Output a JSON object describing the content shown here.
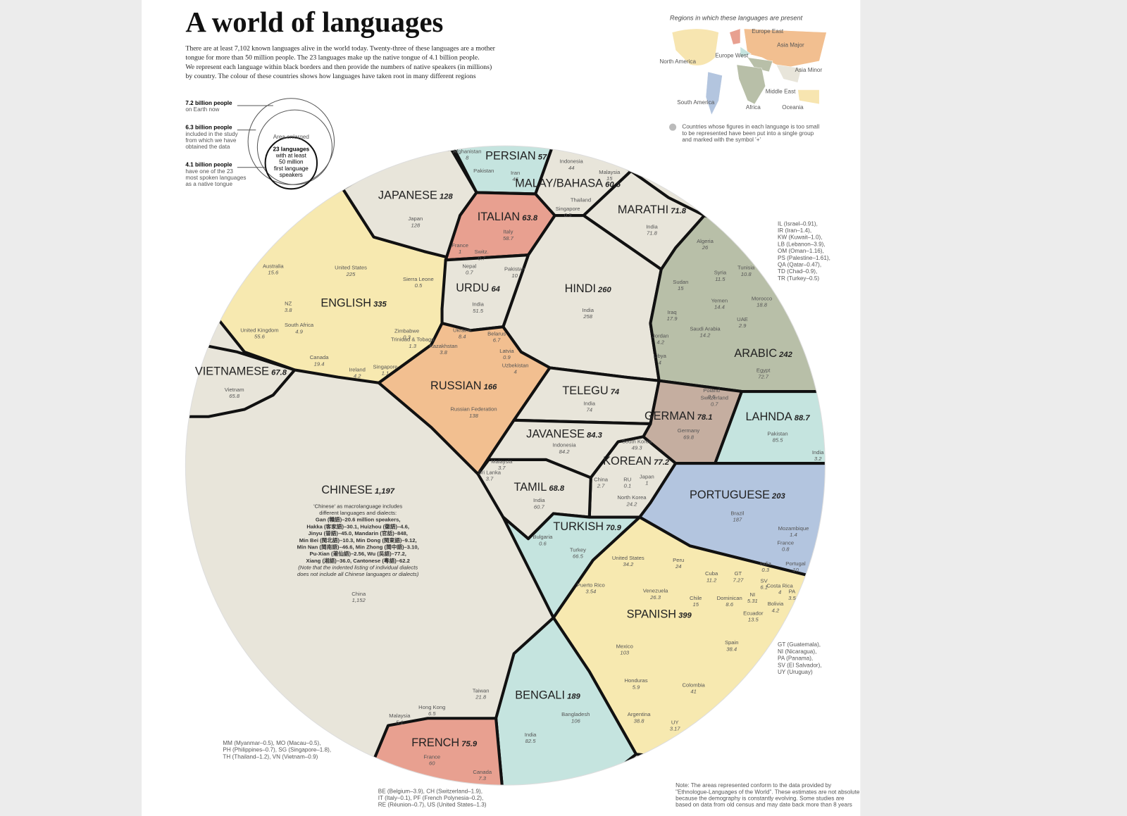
{
  "header": {
    "title": "A world of languages",
    "intro": [
      "There are at least 7,102 known languages alive in the world today. Twenty-three of these languages are a mother",
      "tongue for more than 50 million people. The 23 languages make up the native tongue of 4.1 billion people.",
      "We represent each language within black borders and then provide the numbers of native speakers (in millions)",
      "by country. The colour of these countries shows how languages have taken root in many different regions"
    ]
  },
  "key": {
    "items": [
      {
        "figure": "7.2 billion people",
        "text": [
          "on Earth now"
        ]
      },
      {
        "figure": "6.3 billion people",
        "text": [
          "included in the study",
          "from which we have",
          "obtained the data"
        ]
      },
      {
        "figure": "4.1 billion people",
        "text": [
          "have one of the 23",
          "most spoken languages",
          "as a native tongue"
        ]
      }
    ],
    "enlarged": "Area enlarged",
    "circle_text": [
      "23 languages",
      "with at least",
      "50 million",
      "first language",
      "speakers"
    ]
  },
  "map": {
    "title": "Regions in which these languages are present",
    "regions": [
      "Europe East",
      "Asia Major",
      "North America",
      "Europe West",
      "Asia Minor",
      "Middle East",
      "South America",
      "Africa",
      "Oceania"
    ],
    "note": [
      "Countries whose figures in each language is too small",
      "to be represented have been put into a single group",
      "and marked with the symbol '+'"
    ]
  },
  "languages": [
    {
      "name": "PERSIAN",
      "total": 57,
      "countries": [
        {
          "name": "Afghanistan",
          "value": 8
        },
        {
          "name": "Pakistan"
        },
        {
          "name": "Iran",
          "value": 46
        }
      ]
    },
    {
      "name": "MALAY/BAHASA",
      "total": 60.5,
      "countries": [
        {
          "name": "Indonesia",
          "value": 44
        },
        {
          "name": "Malaysia",
          "value": 15
        },
        {
          "name": "Thailand"
        },
        {
          "name": "Singapore",
          "value": 0.5
        }
      ]
    },
    {
      "name": "JAPANESE",
      "total": 128,
      "countries": [
        {
          "name": "Japan",
          "value": 128
        }
      ]
    },
    {
      "name": "ITALIAN",
      "total": 63.8,
      "countries": [
        {
          "name": "Italy",
          "value": 58.7
        },
        {
          "name": "France",
          "value": 1
        },
        {
          "name": "Switz.",
          "value": 0.7
        }
      ]
    },
    {
      "name": "MARATHI",
      "total": 71.8,
      "countries": [
        {
          "name": "India",
          "value": 71.8
        }
      ]
    },
    {
      "name": "URDU",
      "total": 64,
      "countries": [
        {
          "name": "Nepal",
          "value": 0.7
        },
        {
          "name": "Pakistan",
          "value": 10
        },
        {
          "name": "India",
          "value": 51.5
        }
      ]
    },
    {
      "name": "HINDI",
      "total": 260,
      "countries": [
        {
          "name": "India",
          "value": 258
        }
      ]
    },
    {
      "name": "ENGLISH",
      "total": 335,
      "countries": [
        {
          "name": "United States",
          "value": 225
        },
        {
          "name": "Australia",
          "value": 15.6
        },
        {
          "name": "NZ",
          "value": 3.8
        },
        {
          "name": "South Africa",
          "value": 4.9
        },
        {
          "name": "United Kingdom",
          "value": 55.6
        },
        {
          "name": "Canada",
          "value": 19.4
        },
        {
          "name": "Ireland",
          "value": 4.2
        },
        {
          "name": "Singapore",
          "value": 1.1
        },
        {
          "name": "Sierra Leone",
          "value": 0.5
        },
        {
          "name": "Zimbabwe",
          "value": 0.3
        },
        {
          "name": "Trinidad & Tobago",
          "value": 1.3
        }
      ]
    },
    {
      "name": "ARABIC",
      "total": 242,
      "countries": [
        {
          "name": "Algeria",
          "value": 26
        },
        {
          "name": "Sudan",
          "value": 15
        },
        {
          "name": "Syria",
          "value": 11.5
        },
        {
          "name": "Tunisia",
          "value": 10.8
        },
        {
          "name": "Yemen",
          "value": 14.4
        },
        {
          "name": "Morocco",
          "value": 18.8
        },
        {
          "name": "Iraq",
          "value": 17.9
        },
        {
          "name": "Saudi Arabia",
          "value": 14.2
        },
        {
          "name": "UAE",
          "value": 2.9
        },
        {
          "name": "Jordan",
          "value": 4.2
        },
        {
          "name": "Libya",
          "value": 4
        },
        {
          "name": "Egypt",
          "value": 72.7
        }
      ]
    },
    {
      "name": "VIETNAMESE",
      "total": 67.8,
      "countries": [
        {
          "name": "Vietnam",
          "value": 65.8
        }
      ]
    },
    {
      "name": "RUSSIAN",
      "total": 166,
      "countries": [
        {
          "name": "Ukraine",
          "value": 8.4
        },
        {
          "name": "Belarus",
          "value": 6.7
        },
        {
          "name": "Kazakhstan",
          "value": 3.8
        },
        {
          "name": "Latvia",
          "value": 0.9
        },
        {
          "name": "Uzbekistan",
          "value": 4
        },
        {
          "name": "Russian Federation",
          "value": 138
        }
      ]
    },
    {
      "name": "TELEGU",
      "total": 74,
      "countries": [
        {
          "name": "India",
          "value": 74
        }
      ]
    },
    {
      "name": "GERMAN",
      "total": 78.1,
      "countries": [
        {
          "name": "Poland",
          "value": 0.5
        },
        {
          "name": "Switzerland",
          "value": 0.7
        },
        {
          "name": "Germany",
          "value": 69.8
        }
      ]
    },
    {
      "name": "LAHNDA",
      "total": 88.7,
      "countries": [
        {
          "name": "Pakistan",
          "value": 85.5
        },
        {
          "name": "India",
          "value": 3.2
        }
      ]
    },
    {
      "name": "JAVANESE",
      "total": 84.3,
      "countries": [
        {
          "name": "Indonesia",
          "value": 84.2
        }
      ]
    },
    {
      "name": "KOREAN",
      "total": 77.2,
      "countries": [
        {
          "name": "South Korea",
          "value": 49.3
        },
        {
          "name": "China",
          "value": 2.7
        },
        {
          "name": "RU",
          "value": 0.1
        },
        {
          "name": "Japan",
          "value": 1
        },
        {
          "name": "North Korea",
          "value": 24.2
        }
      ]
    },
    {
      "name": "CHINESE",
      "total": "1,197",
      "note": [
        "'Chinese' as macrolanguage includes",
        "different languages and dialects:",
        "Gan (贛語)–20.6 million speakers,",
        "Hakka (客家語)–30.1, Huizhou (徽語)–4.6,",
        "Jinyu (晉語)–45.0, Mandarin (官話)–848,",
        "Min Bei (閩北語)–10.3, Min Dong (閩東語)–9.12,",
        "Min Nan (閩南語)–46.6, Min Zhong (閩中語)–3.10,",
        "Pu-Xian (莆仙語)–2.56, Wu (吳語)–77.2,",
        "Xiang (湘語)–36.0, Cantonese (粵語)–62.2",
        "(Note that the indented listing of individual dialects",
        "does not include all Chinese languages or dialects)"
      ],
      "countries": [
        {
          "name": "China",
          "value": "1,152"
        },
        {
          "name": "Taiwan",
          "value": 21.8
        },
        {
          "name": "Hong Kong",
          "value": 6.5
        },
        {
          "name": "Malaysia",
          "value": 5.1
        }
      ]
    },
    {
      "name": "TAMIL",
      "total": 68.8,
      "countries": [
        {
          "name": "Malaysia",
          "value": 3.7
        },
        {
          "name": "Sri Lanka",
          "value": 3.7
        },
        {
          "name": "India",
          "value": 60.7
        }
      ]
    },
    {
      "name": "PORTUGUESE",
      "total": 203,
      "countries": [
        {
          "name": "Brazil",
          "value": 187
        },
        {
          "name": "Mozambique",
          "value": 1.4
        },
        {
          "name": "France",
          "value": 0.8
        },
        {
          "name": "India",
          "value": 0.3
        },
        {
          "name": "Portugal",
          "value": 10
        }
      ]
    },
    {
      "name": "TURKISH",
      "total": 70.9,
      "countries": [
        {
          "name": "Bulgaria",
          "value": 0.6
        },
        {
          "name": "Turkey",
          "value": 66.5
        }
      ]
    },
    {
      "name": "SPANISH",
      "total": 399,
      "countries": [
        {
          "name": "United States",
          "value": 34.2
        },
        {
          "name": "Peru",
          "value": 24
        },
        {
          "name": "Cuba",
          "value": 11.2
        },
        {
          "name": "GT",
          "value": 7.27
        },
        {
          "name": "SV",
          "value": 6.1
        },
        {
          "name": "Venezuela",
          "value": 26.3
        },
        {
          "name": "Chile",
          "value": 15
        },
        {
          "name": "Dominican",
          "value": 8.6
        },
        {
          "name": "NI",
          "value": 5.31
        },
        {
          "name": "Costa Rica",
          "value": 4
        },
        {
          "name": "PA",
          "value": 3.5
        },
        {
          "name": "Bolivia",
          "value": 4.2
        },
        {
          "name": "Ecuador",
          "value": 13.5
        },
        {
          "name": "Puerto Rico",
          "value": 3.54
        },
        {
          "name": "Spain",
          "value": 38.4
        },
        {
          "name": "Mexico",
          "value": 103
        },
        {
          "name": "Honduras",
          "value": 5.9
        },
        {
          "name": "Colombia",
          "value": 41
        },
        {
          "name": "Argentina",
          "value": 38.8
        },
        {
          "name": "UY",
          "value": 3.17
        }
      ]
    },
    {
      "name": "BENGALI",
      "total": 189,
      "countries": [
        {
          "name": "Bangladesh",
          "value": 106
        },
        {
          "name": "India",
          "value": 82.5
        }
      ]
    },
    {
      "name": "FRENCH",
      "total": 75.9,
      "countries": [
        {
          "name": "France",
          "value": 60
        },
        {
          "name": "Canada",
          "value": 7.3
        }
      ]
    }
  ],
  "notes": {
    "arabic": [
      "IL (Israel–0.91),",
      "IR (Iran–1.4),",
      "KW (Kuwait–1.0),",
      "LB (Lebanon–3.9),",
      "OM (Oman–1.16),",
      "PS (Palestine–1.61),",
      "QA (Qatar–0.47),",
      "TD (Chad–0.9),",
      "TR (Turkey–0.5)"
    ],
    "spanish": [
      "GT (Guatemala),",
      "NI (Nicaragua),",
      "PA (Panama),",
      "SV (El Salvador),",
      "UY (Uruguay)"
    ],
    "chinese": [
      "MM (Myanmar–0.5), MO (Macau–0.5),",
      "PH (Philippines–0.7), SG (Singapore–1.8),",
      "TH (Thailand–1.2), VN (Vietnam–0.9)"
    ],
    "french": [
      "BE (Belgium–3.9), CH (Switzerland–1.9),",
      "IT (Italy–0.1), PF (French Polynesia–0.2),",
      "RE (Réunion–0.7), US (United States–1.3)"
    ],
    "footnote": [
      "Note: The areas represented conform to the data provided by",
      "\"Ethnologue-Languages of the World\". These estimates are not absolute",
      "because the demography is constantly evolving. Some studies are",
      "based on data from old census and may date back more than 8 years"
    ]
  }
}
